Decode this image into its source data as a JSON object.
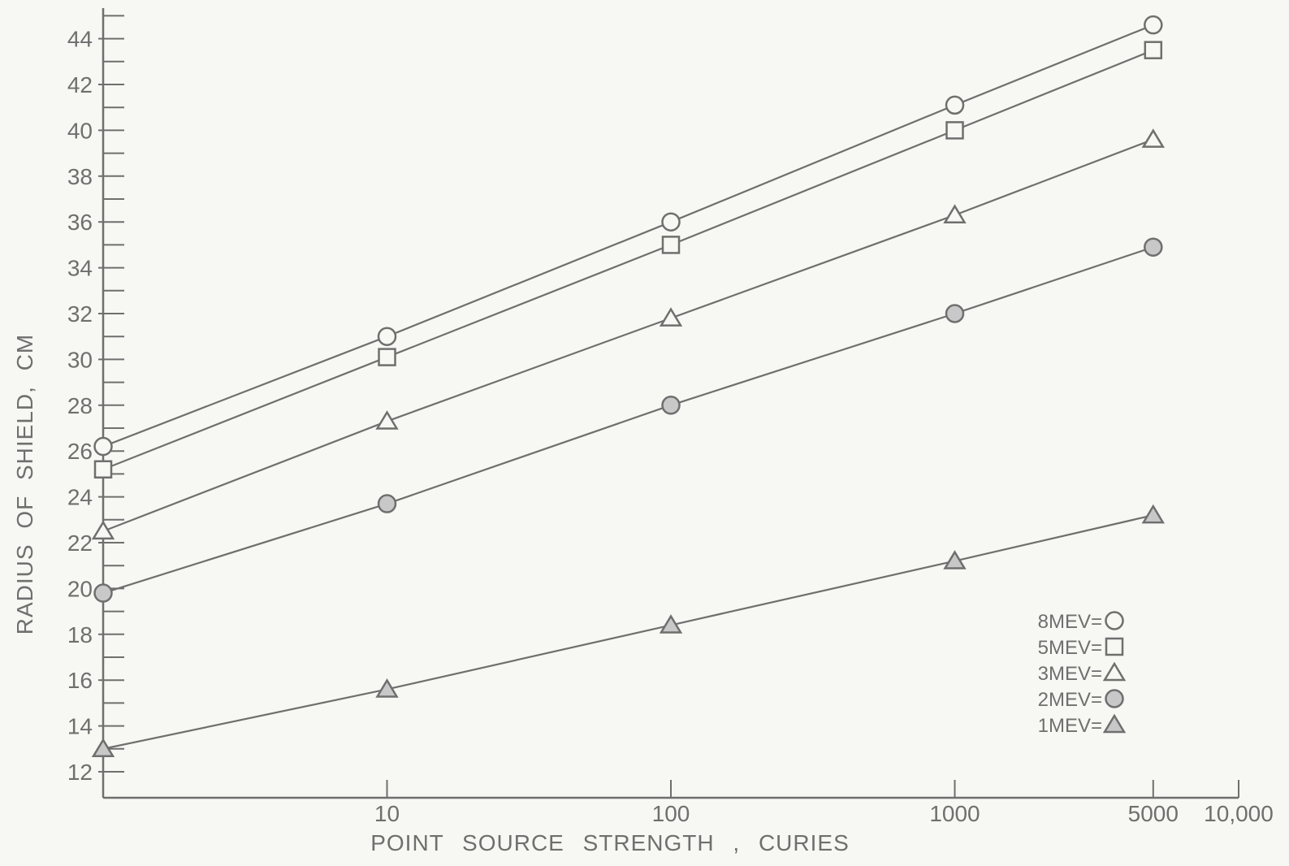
{
  "chart_data": {
    "type": "line",
    "title": "",
    "xlabel": "POINT SOURCE STRENGTH , CURIES",
    "ylabel": "RADIUS OF SHIELD, CM",
    "x_scale": "log",
    "x_ticks": [
      {
        "value": 10,
        "label": "10"
      },
      {
        "value": 100,
        "label": "100"
      },
      {
        "value": 1000,
        "label": "1000"
      },
      {
        "value": 5000,
        "label": "5000"
      },
      {
        "value": 10000,
        "label": "10,000"
      }
    ],
    "xlim": [
      1,
      10000
    ],
    "ylim": [
      11.5,
      45.5
    ],
    "y_ticks": [
      12,
      14,
      16,
      18,
      20,
      22,
      24,
      26,
      28,
      30,
      32,
      34,
      36,
      38,
      40,
      42,
      44
    ],
    "grid": false,
    "legend_position": "bottom-right",
    "series": [
      {
        "name": "8MEV=",
        "marker": "circle-open",
        "x": [
          1,
          10,
          100,
          1000,
          5000
        ],
        "y": [
          26.2,
          31.0,
          36.0,
          41.1,
          44.6
        ]
      },
      {
        "name": "5MEV=",
        "marker": "square-open",
        "x": [
          1,
          10,
          100,
          1000,
          5000
        ],
        "y": [
          25.2,
          30.1,
          35.0,
          40.0,
          43.5
        ]
      },
      {
        "name": "3MEV=",
        "marker": "triangle-open",
        "x": [
          1,
          10,
          100,
          1000,
          5000
        ],
        "y": [
          22.5,
          27.3,
          31.8,
          36.3,
          39.6
        ]
      },
      {
        "name": "2MEV=",
        "marker": "circle-filled",
        "x": [
          1,
          10,
          100,
          1000,
          5000
        ],
        "y": [
          19.8,
          23.7,
          28.0,
          32.0,
          34.9
        ]
      },
      {
        "name": "1MEV=",
        "marker": "triangle-filled",
        "x": [
          1,
          10,
          100,
          1000,
          5000
        ],
        "y": [
          13.0,
          15.6,
          18.4,
          21.2,
          23.2
        ]
      }
    ]
  },
  "colors": {
    "background": "#f7f7f3",
    "ink": "#6f6f6f",
    "marker_fill_filled": "#c8c8c8",
    "marker_fill_open": "#f7f7f3"
  }
}
